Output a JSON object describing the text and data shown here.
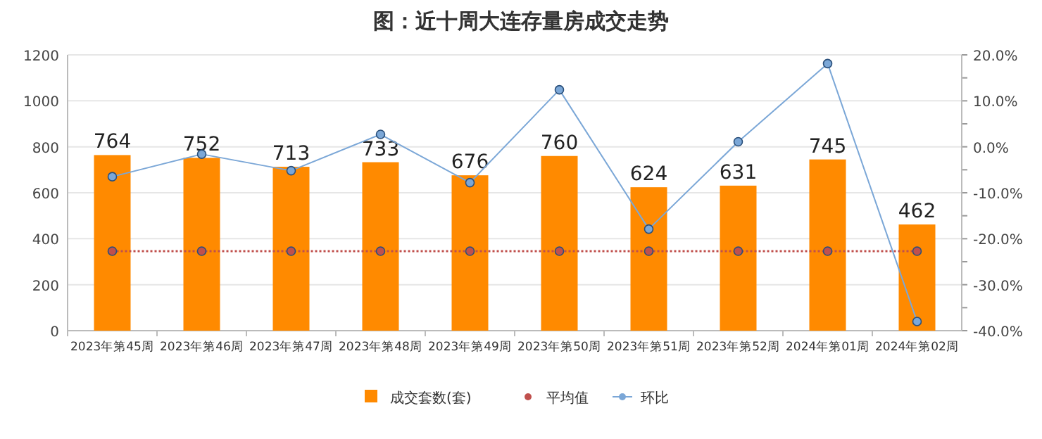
{
  "chart_data": {
    "type": "bar",
    "title": "图：近十周大连存量房成交走势",
    "categories": [
      "2023年第45周",
      "2023年第46周",
      "2023年第47周",
      "2023年第48周",
      "2023年第49周",
      "2023年第50周",
      "2023年第51周",
      "2023年第52周",
      "2024年第01周",
      "2024年第02周"
    ],
    "series": [
      {
        "name": "成交套数(套)",
        "color": "#ff8a00",
        "values": [
          764,
          752,
          713,
          733,
          676,
          760,
          624,
          631,
          745,
          462
        ],
        "value_labels": [
          "764",
          "752",
          "713",
          "733",
          "676",
          "760",
          "624",
          "631",
          "745",
          "462"
        ]
      },
      {
        "name": "平均值",
        "type": "line",
        "axis": "y2",
        "color": "#c0504d",
        "line_style": "dotted",
        "marker": "circle",
        "values": [
          -22.7,
          -22.7,
          -22.7,
          -22.7,
          -22.7,
          -22.7,
          -22.7,
          -22.7,
          -22.7,
          -22.7
        ]
      },
      {
        "name": "环比",
        "type": "line",
        "axis": "y2",
        "color": "#7ba7d7",
        "line_style": "solid",
        "marker": "circle",
        "values": [
          -6.5,
          -1.6,
          -5.2,
          2.7,
          -7.8,
          12.4,
          -17.9,
          1.1,
          18.1,
          -38.0
        ]
      }
    ],
    "ylim": [
      0,
      1200
    ],
    "yticks": [
      0,
      200,
      400,
      600,
      800,
      1000,
      1200
    ],
    "y2lim": [
      -40,
      20
    ],
    "y2ticks": [
      {
        "value": -40,
        "label": "-40.0%"
      },
      {
        "value": -35,
        "label": null
      },
      {
        "value": -30,
        "label": "-30.0%"
      },
      {
        "value": -25,
        "label": null
      },
      {
        "value": -20,
        "label": "-20.0%"
      },
      {
        "value": -15,
        "label": null
      },
      {
        "value": -10,
        "label": "-10.0%"
      },
      {
        "value": -5,
        "label": null
      },
      {
        "value": 0,
        "label": "0.0%"
      },
      {
        "value": 5,
        "label": null
      },
      {
        "value": 10,
        "label": "10.0%"
      },
      {
        "value": 15,
        "label": null
      },
      {
        "value": 20,
        "label": "20.0%"
      }
    ],
    "grid": "y",
    "legend": "bottom"
  }
}
